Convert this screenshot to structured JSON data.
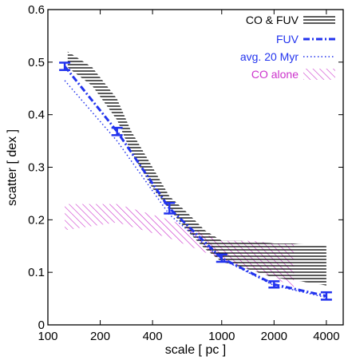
{
  "chart_data": {
    "type": "line",
    "xlabel": "scale [ pc ]",
    "ylabel": "scatter [ dex ]",
    "xscale": "log",
    "xlim": [
      100,
      5000
    ],
    "ylim": [
      0,
      0.6
    ],
    "x_ticks": [
      100,
      200,
      400,
      1000,
      2000,
      4000
    ],
    "x_tick_labels": [
      "100",
      "200",
      "400",
      "1000",
      "2000",
      "4000"
    ],
    "y_ticks": [
      0,
      0.1,
      0.2,
      0.3,
      0.4,
      0.5,
      0.6
    ],
    "y_tick_labels": [
      "0",
      "0.1",
      "0.2",
      "0.3",
      "0.4",
      "0.5",
      "0.6"
    ],
    "grid": false,
    "legend_position": "top-right",
    "colors": {
      "co_fuv": "#000000",
      "fuv": "#2233ee",
      "avg": "#2233ee",
      "co_alone": "#cc33cc"
    },
    "series": [
      {
        "name": "CO & FUV",
        "style": "horizontal-hatched band",
        "x": [
          130,
          180,
          250,
          300,
          400,
          500,
          650,
          800,
          1000,
          1300,
          2000,
          2600,
          4000
        ],
        "lower": [
          0.49,
          0.455,
          0.39,
          0.33,
          0.26,
          0.22,
          0.175,
          0.145,
          0.12,
          0.11,
          0.09,
          0.085,
          0.075
        ],
        "upper": [
          0.52,
          0.49,
          0.43,
          0.37,
          0.3,
          0.245,
          0.21,
          0.18,
          0.16,
          0.16,
          0.155,
          0.155,
          0.15
        ]
      },
      {
        "name": "FUV",
        "style": "dash-dot line with error bars",
        "x": [
          125,
          250,
          500,
          1000,
          2000,
          4000
        ],
        "y": [
          0.492,
          0.368,
          0.222,
          0.127,
          0.077,
          0.055
        ],
        "err": [
          0.007,
          0.007,
          0.01,
          0.007,
          0.006,
          0.007
        ]
      },
      {
        "name": "avg. 20 Myr",
        "style": "dotted line",
        "x": [
          125,
          250,
          500,
          1000,
          2000,
          4000
        ],
        "y": [
          0.465,
          0.35,
          0.21,
          0.125,
          0.075,
          0.052
        ]
      },
      {
        "name": "CO alone",
        "style": "diagonal-hatched band",
        "x": [
          125,
          250,
          500,
          1000,
          1500,
          2000,
          2600
        ],
        "lower": [
          0.18,
          0.195,
          0.165,
          0.125,
          0.105,
          0.09,
          0.07
        ],
        "upper": [
          0.23,
          0.23,
          0.2,
          0.16,
          0.16,
          0.155,
          0.155
        ]
      }
    ]
  }
}
